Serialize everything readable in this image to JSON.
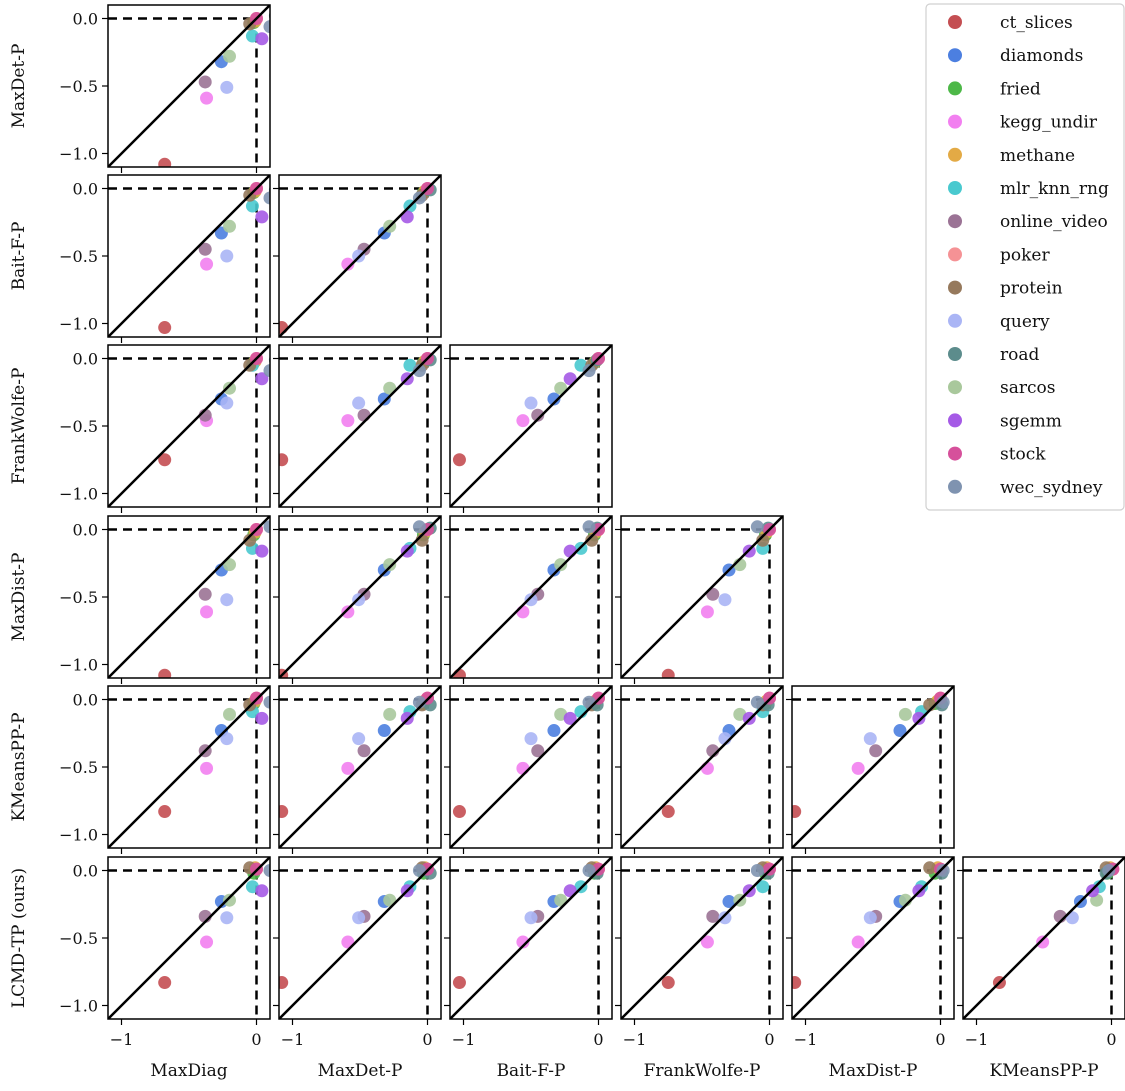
{
  "chart_data": {
    "type": "scatter",
    "title": "",
    "methods": [
      "MaxDiag",
      "MaxDet-P",
      "Bait-F-P",
      "FrankWolfe-P",
      "MaxDist-P",
      "KMeansPP-P",
      "LCMD-TP (ours)"
    ],
    "axis_labels": {
      "x": [
        "MaxDiag",
        "MaxDet-P",
        "Bait-F-P",
        "FrankWolfe-P",
        "MaxDist-P",
        "KMeansPP-P"
      ],
      "y": [
        "MaxDet-P",
        "Bait-F-P",
        "FrankWolfe-P",
        "MaxDist-P",
        "KMeansPP-P",
        "LCMD-TP (ours)"
      ]
    },
    "xlim": [
      -1.1,
      0.1
    ],
    "ylim": [
      -1.1,
      0.1
    ],
    "xticks": [
      "−1",
      "0"
    ],
    "yticks": [
      "0.0",
      "−0.5",
      "−1.0"
    ],
    "reference_lines": [
      "diagonal y = x",
      "horizontal y = 0",
      "vertical x = 0"
    ],
    "legend_position": "top-right",
    "series": [
      {
        "name": "ct_slices",
        "color": "#c44e52",
        "values": [
          -0.68,
          -1.08,
          -1.03,
          -0.75,
          -1.08,
          -0.83,
          -0.83
        ]
      },
      {
        "name": "diamonds",
        "color": "#4c7fe0",
        "values": [
          -0.26,
          -0.32,
          -0.33,
          -0.3,
          -0.3,
          -0.23,
          -0.23
        ]
      },
      {
        "name": "fried",
        "color": "#4db848",
        "values": [
          -0.02,
          -0.03,
          -0.03,
          -0.03,
          -0.04,
          -0.03,
          -0.02
        ]
      },
      {
        "name": "kegg_undir",
        "color": "#f27ff0",
        "values": [
          -0.37,
          -0.59,
          -0.56,
          -0.46,
          -0.61,
          -0.51,
          -0.53
        ]
      },
      {
        "name": "methane",
        "color": "#e3aa45",
        "values": [
          -0.01,
          -0.02,
          -0.02,
          -0.02,
          -0.02,
          -0.01,
          0.02
        ]
      },
      {
        "name": "mlr_knn_rng",
        "color": "#49c9cf",
        "values": [
          -0.03,
          -0.13,
          -0.13,
          -0.05,
          -0.14,
          -0.09,
          -0.12
        ]
      },
      {
        "name": "online_video",
        "color": "#9b7395",
        "values": [
          -0.38,
          -0.47,
          -0.45,
          -0.42,
          -0.48,
          -0.38,
          -0.34
        ]
      },
      {
        "name": "poker",
        "color": "#f59295",
        "values": [
          0.0,
          0.0,
          0.0,
          0.0,
          0.0,
          0.01,
          0.01
        ]
      },
      {
        "name": "protein",
        "color": "#96795c",
        "values": [
          -0.05,
          -0.04,
          -0.05,
          -0.05,
          -0.08,
          -0.04,
          0.02
        ]
      },
      {
        "name": "query",
        "color": "#aab5f5",
        "values": [
          -0.22,
          -0.51,
          -0.5,
          -0.33,
          -0.52,
          -0.29,
          -0.35
        ]
      },
      {
        "name": "road",
        "color": "#5c8c8c",
        "values": [
          0.14,
          0.02,
          -0.01,
          -0.01,
          0.01,
          -0.04,
          -0.02
        ]
      },
      {
        "name": "sarcos",
        "color": "#a9c89c",
        "values": [
          -0.2,
          -0.28,
          -0.28,
          -0.22,
          -0.26,
          -0.11,
          -0.22
        ]
      },
      {
        "name": "sgemm",
        "color": "#a55ae6",
        "values": [
          0.04,
          -0.15,
          -0.21,
          -0.15,
          -0.16,
          -0.14,
          -0.15
        ]
      },
      {
        "name": "stock",
        "color": "#d6509b",
        "values": [
          0.0,
          0.0,
          0.0,
          0.0,
          0.0,
          0.01,
          0.01
        ]
      },
      {
        "name": "wec_sydney",
        "color": "#7f93b0",
        "values": [
          0.1,
          -0.06,
          -0.07,
          -0.09,
          0.02,
          -0.02,
          0.0
        ]
      }
    ]
  }
}
